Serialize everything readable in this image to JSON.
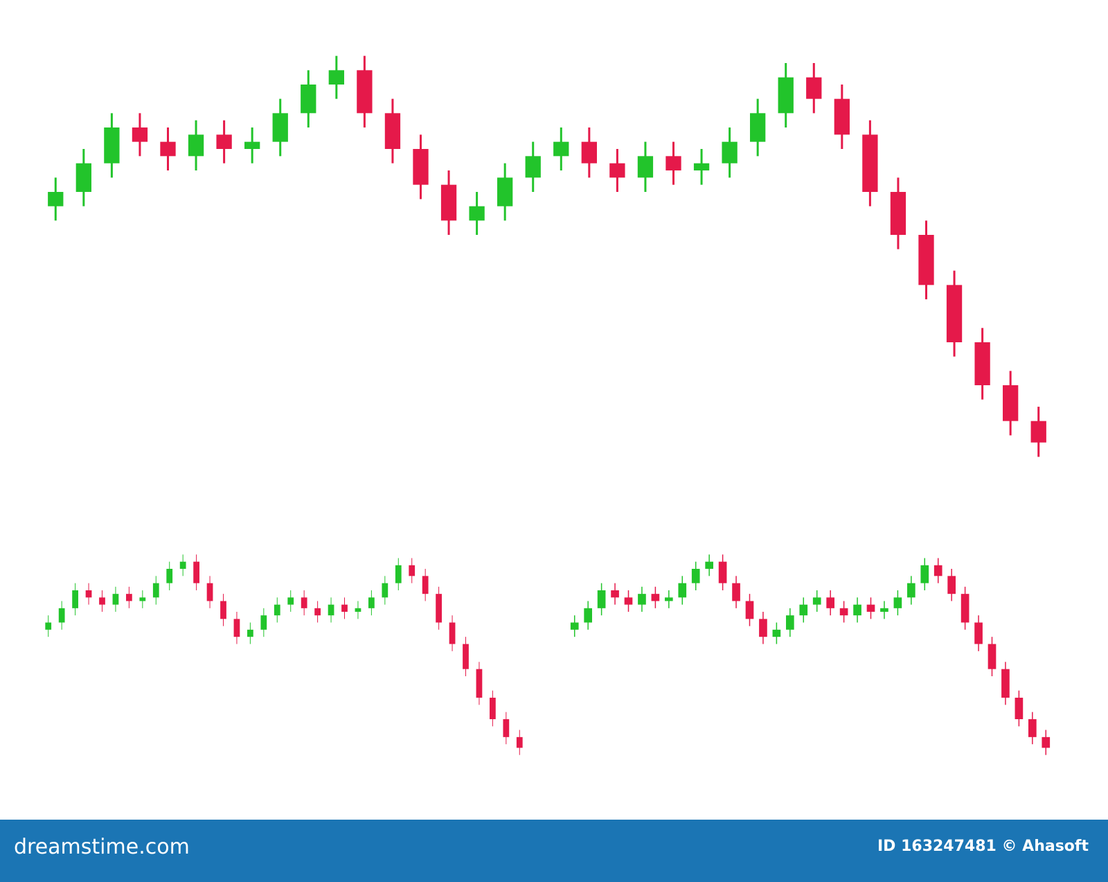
{
  "chart_data": {
    "type": "candlestick",
    "up_color": "#22c42b",
    "down_color": "#e5194a",
    "ylim": [
      20,
      320
    ],
    "open": [
      205,
      215,
      235,
      260,
      250,
      240,
      255,
      245,
      250,
      270,
      290,
      300,
      270,
      245,
      220,
      195,
      205,
      225,
      240,
      250,
      235,
      225,
      240,
      230,
      235,
      250,
      270,
      295,
      280,
      255,
      215,
      185,
      150,
      110,
      80,
      55
    ],
    "high": [
      225,
      245,
      270,
      270,
      260,
      265,
      265,
      260,
      280,
      300,
      310,
      310,
      280,
      255,
      230,
      215,
      235,
      250,
      260,
      260,
      245,
      250,
      250,
      245,
      260,
      280,
      305,
      305,
      290,
      265,
      225,
      195,
      160,
      120,
      90,
      65
    ],
    "low": [
      195,
      205,
      225,
      240,
      230,
      230,
      235,
      235,
      240,
      260,
      280,
      260,
      235,
      210,
      185,
      185,
      195,
      215,
      230,
      225,
      215,
      215,
      220,
      220,
      225,
      240,
      260,
      270,
      245,
      205,
      175,
      140,
      100,
      70,
      45,
      30
    ],
    "close": [
      215,
      235,
      260,
      250,
      240,
      255,
      245,
      250,
      270,
      290,
      300,
      270,
      245,
      220,
      195,
      205,
      225,
      240,
      250,
      235,
      225,
      240,
      230,
      235,
      250,
      270,
      295,
      280,
      255,
      215,
      185,
      150,
      110,
      80,
      55,
      40
    ]
  },
  "footer": {
    "logo": "dreamstime.com",
    "credit": "ID 163247481 © Ahasoft"
  }
}
